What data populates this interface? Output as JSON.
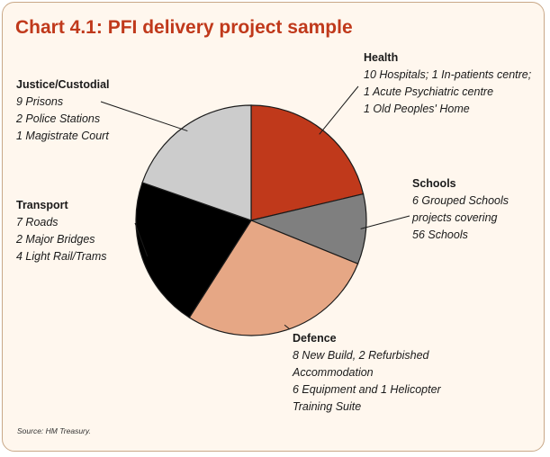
{
  "title": "Chart 4.1: PFI delivery project sample",
  "source": "Source: HM Treasury.",
  "colors": {
    "frame_bg": "#fff7ee",
    "frame_border": "#c9a888",
    "title": "#c0391b"
  },
  "chart_data": {
    "type": "pie",
    "title": "Chart 4.1: PFI delivery project sample",
    "legend": "none",
    "slices": [
      {
        "name": "Health",
        "value": 13,
        "color": "#c0391b",
        "details": [
          "10 Hospitals; 1 In-patients centre;",
          "1 Acute Psychiatric centre",
          "1 Old Peoples' Home"
        ]
      },
      {
        "name": "Schools",
        "value": 6,
        "color": "#7f7f7f",
        "details": [
          "6 Grouped Schools",
          "projects covering",
          "56 Schools"
        ]
      },
      {
        "name": "Defence",
        "value": 17,
        "color": "#e6a785",
        "details": [
          "8 New Build, 2 Refurbished",
          "Accommodation",
          "6 Equipment and 1 Helicopter",
          "Training Suite"
        ]
      },
      {
        "name": "Transport",
        "value": 13,
        "color": "#000000",
        "details": [
          "7 Roads",
          "2 Major Bridges",
          "4 Light Rail/Trams"
        ]
      },
      {
        "name": "Justice/Custodial",
        "value": 12,
        "color": "#cccccc",
        "details": [
          "9 Prisons",
          "2 Police Stations",
          "1 Magistrate Court"
        ]
      }
    ]
  }
}
